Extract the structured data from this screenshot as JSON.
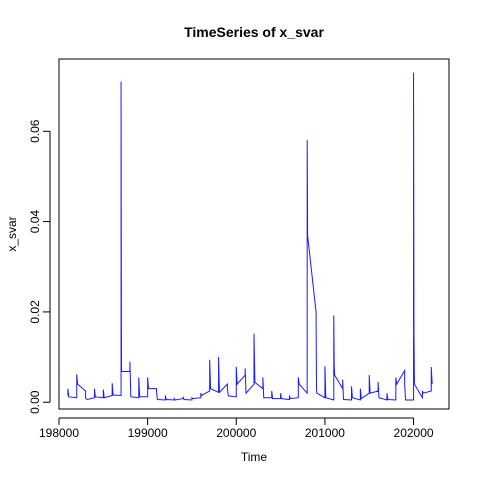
{
  "chart_data": {
    "type": "line",
    "title": "TimeSeries of  x_svar",
    "xlabel": "Time",
    "ylabel": "x_svar",
    "xlim": [
      198000,
      202400
    ],
    "ylim": [
      -0.0015,
      0.076
    ],
    "x_ticks": [
      198000,
      199000,
      200000,
      201000,
      202000
    ],
    "y_ticks": [
      0.0,
      0.02,
      0.04,
      0.06
    ],
    "y_tick_labels": [
      "0.00",
      "0.02",
      "0.04",
      "0.06"
    ],
    "grid": false,
    "legend": "none",
    "series_color": "#1a1aff",
    "series": [
      {
        "x": [
          198100,
          198100,
          198110,
          198200,
          198200,
          198205,
          198210,
          198300,
          198300,
          198320,
          198400,
          198400,
          198410,
          198500,
          198500,
          198510,
          198600,
          198600,
          198610,
          198700,
          198700,
          198705,
          198710,
          198800,
          198800,
          198810,
          198900,
          198900,
          198910,
          199000,
          199000,
          199010,
          199100,
          199100,
          199110,
          199200,
          199200,
          199210,
          199300,
          199300,
          199310,
          199400,
          199400,
          199410,
          199500,
          199500,
          199510,
          199600,
          199600,
          199610,
          199700,
          199700,
          199710,
          199800,
          199800,
          199810,
          199900,
          199900,
          199910,
          200000,
          200000,
          200010,
          200100,
          200100,
          200110,
          200200,
          200200,
          200210,
          200300,
          200300,
          200310,
          200400,
          200400,
          200410,
          200500,
          200500,
          200510,
          200600,
          200600,
          200610,
          200700,
          200700,
          200710,
          200800,
          200800,
          200805,
          200810,
          200900,
          200900,
          200905,
          200910,
          201000,
          201000,
          201010,
          201100,
          201100,
          201105,
          201110,
          201200,
          201200,
          201210,
          201300,
          201300,
          201310,
          201400,
          201400,
          201410,
          201500,
          201500,
          201510,
          201600,
          201600,
          201610,
          201700,
          201700,
          201710,
          201800,
          201800,
          201810,
          201900,
          201900,
          201910,
          202000,
          202000,
          202005,
          202010,
          202100,
          202100,
          202110,
          202200,
          202200,
          202210
        ],
        "values": [
          0.0015,
          0.003,
          0.0012,
          0.001,
          0.0062,
          0.005,
          0.004,
          0.0025,
          0.0008,
          0.0006,
          0.001,
          0.003,
          0.0012,
          0.001,
          0.0028,
          0.001,
          0.0015,
          0.0042,
          0.0016,
          0.0015,
          0.071,
          0.0068,
          0.0068,
          0.0068,
          0.009,
          0.0012,
          0.001,
          0.0055,
          0.0012,
          0.0012,
          0.0055,
          0.003,
          0.003,
          0.0025,
          0.0006,
          0.0005,
          0.0015,
          0.0006,
          0.0005,
          0.0008,
          0.0005,
          0.0008,
          0.0012,
          0.0006,
          0.0005,
          0.001,
          0.0008,
          0.001,
          0.002,
          0.0015,
          0.0025,
          0.0094,
          0.003,
          0.0022,
          0.01,
          0.0022,
          0.004,
          0.003,
          0.0014,
          0.0012,
          0.0078,
          0.004,
          0.006,
          0.0075,
          0.002,
          0.004,
          0.0152,
          0.0044,
          0.003,
          0.0055,
          0.001,
          0.001,
          0.0025,
          0.0008,
          0.0008,
          0.002,
          0.0008,
          0.0006,
          0.0015,
          0.0008,
          0.001,
          0.0055,
          0.004,
          0.002,
          0.058,
          0.037,
          0.036,
          0.02,
          0.0202,
          0.003,
          0.002,
          0.001,
          0.008,
          0.001,
          0.0005,
          0.0192,
          0.008,
          0.006,
          0.003,
          0.005,
          0.0006,
          0.0005,
          0.0035,
          0.001,
          0.0005,
          0.003,
          0.0008,
          0.002,
          0.006,
          0.002,
          0.0025,
          0.0045,
          0.001,
          0.0005,
          0.002,
          0.0006,
          0.0005,
          0.0055,
          0.004,
          0.007,
          0.004,
          0.0005,
          0.0005,
          0.073,
          0.0145,
          0.004,
          0.001,
          0.0025,
          0.002,
          0.0025,
          0.0078,
          0.004
        ]
      }
    ]
  }
}
